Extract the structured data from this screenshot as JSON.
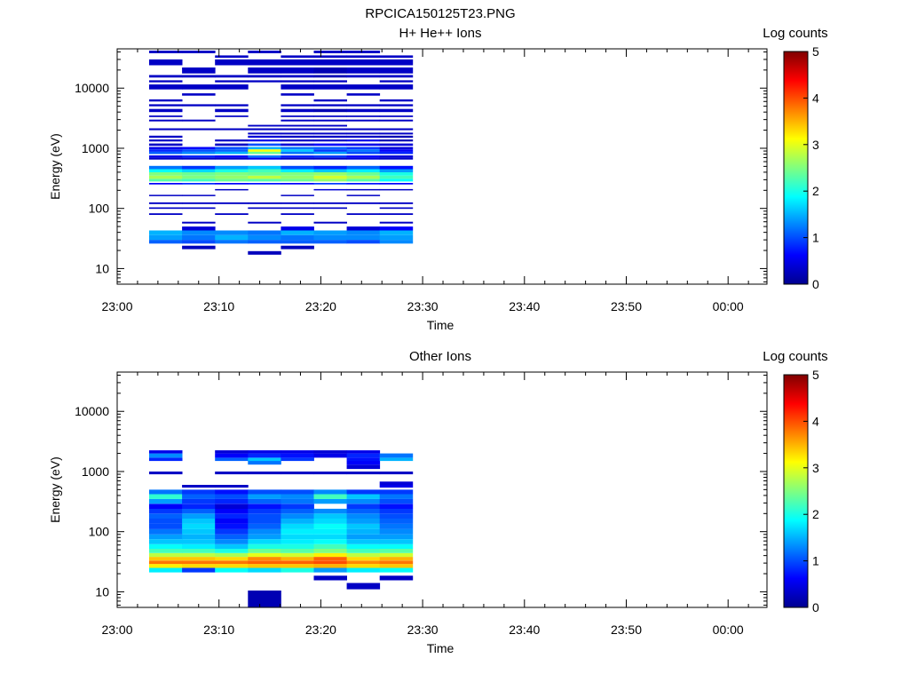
{
  "figure": {
    "title": "RPCICA150125T23.PNG"
  },
  "colorbar": {
    "label": "Log counts",
    "range": [
      0,
      5
    ],
    "ticks": [
      "0",
      "1",
      "2",
      "3",
      "4",
      "5"
    ]
  },
  "chart_data": [
    {
      "type": "heatmap",
      "title": "H+ He++ Ions",
      "xlabel": "Time",
      "ylabel": "Energy (eV)",
      "yscale": "log",
      "ylim": [
        5.5,
        45000
      ],
      "x_ticks": [
        "23:00",
        "23:10",
        "23:20",
        "23:30",
        "23:40",
        "23:50",
        "00:00"
      ],
      "y_ticks": [
        "10",
        "100",
        "1000",
        "10000"
      ],
      "time_columns": [
        "23:03",
        "23:06",
        "23:09",
        "23:12",
        "23:16",
        "23:19",
        "23:22",
        "23:25"
      ],
      "rows": [
        {
          "e_lo": 17,
          "e_hi": 19.5,
          "v": [
            null,
            null,
            null,
            0.25,
            null,
            null,
            null,
            null
          ]
        },
        {
          "e_lo": 21,
          "e_hi": 24,
          "v": [
            null,
            0.25,
            null,
            null,
            0.25,
            null,
            null,
            null
          ]
        },
        {
          "e_lo": 26,
          "e_hi": 30,
          "v": [
            1.1,
            1.0,
            1.2,
            1.1,
            1.1,
            1.1,
            1.0,
            1.3
          ]
        },
        {
          "e_lo": 30,
          "e_hi": 36,
          "v": [
            1.4,
            1.2,
            1.5,
            1.3,
            1.2,
            1.3,
            1.3,
            1.4
          ]
        },
        {
          "e_lo": 36,
          "e_hi": 43,
          "v": [
            1.5,
            1.3,
            1.3,
            1.2,
            1.5,
            1.4,
            1.3,
            1.5
          ]
        },
        {
          "e_lo": 43,
          "e_hi": 50,
          "v": [
            null,
            0.4,
            null,
            null,
            0.5,
            null,
            0.4,
            0.6
          ]
        },
        {
          "e_lo": 56,
          "e_hi": 60,
          "v": [
            null,
            0.3,
            null,
            0.3,
            null,
            0.3,
            null,
            0.3
          ]
        },
        {
          "e_lo": 78,
          "e_hi": 83,
          "v": [
            0.3,
            null,
            0.3,
            null,
            0.3,
            null,
            0.3,
            0.3
          ]
        },
        {
          "e_lo": 98,
          "e_hi": 104,
          "v": [
            0.3,
            0.3,
            null,
            0.3,
            0.3,
            0.3,
            null,
            0.3
          ]
        },
        {
          "e_lo": 118,
          "e_hi": 126,
          "v": [
            0.3,
            0.3,
            0.3,
            0.3,
            0.3,
            0.3,
            0.3,
            0.3
          ]
        },
        {
          "e_lo": 160,
          "e_hi": 168,
          "v": [
            0.3,
            0.3,
            null,
            null,
            0.3,
            null,
            0.3,
            null
          ]
        },
        {
          "e_lo": 200,
          "e_hi": 210,
          "v": [
            null,
            null,
            0.3,
            null,
            null,
            0.4,
            0.3,
            0.3
          ]
        },
        {
          "e_lo": 250,
          "e_hi": 265,
          "v": [
            0.6,
            0.8,
            0.6,
            0.7,
            0.6,
            0.9,
            0.7,
            0.6
          ]
        },
        {
          "e_lo": 280,
          "e_hi": 310,
          "v": [
            2.3,
            2.2,
            2.4,
            2.3,
            2.4,
            2.6,
            2.3,
            1.9
          ]
        },
        {
          "e_lo": 310,
          "e_hi": 350,
          "v": [
            2.7,
            2.5,
            2.6,
            2.8,
            2.6,
            2.9,
            2.7,
            2.2
          ]
        },
        {
          "e_lo": 350,
          "e_hi": 400,
          "v": [
            2.5,
            2.4,
            2.5,
            2.4,
            2.5,
            2.6,
            2.4,
            2.0
          ]
        },
        {
          "e_lo": 400,
          "e_hi": 450,
          "v": [
            1.9,
            1.7,
            2.0,
            2.2,
            1.8,
            1.6,
            1.8,
            1.4
          ]
        },
        {
          "e_lo": 450,
          "e_hi": 510,
          "v": [
            1.2,
            0.9,
            1.4,
            1.6,
            1.0,
            0.8,
            1.1,
            0.7
          ]
        },
        {
          "e_lo": 650,
          "e_hi": 700,
          "v": [
            0.3,
            0.3,
            0.3,
            0.5,
            0.3,
            0.3,
            0.4,
            0.3
          ]
        },
        {
          "e_lo": 700,
          "e_hi": 760,
          "v": [
            0.5,
            0.8,
            0.6,
            1.2,
            0.8,
            0.9,
            0.6,
            0.4
          ]
        },
        {
          "e_lo": 800,
          "e_hi": 880,
          "v": [
            1.1,
            1.3,
            1.5,
            2.4,
            1.2,
            1.4,
            1.0,
            0.8
          ]
        },
        {
          "e_lo": 880,
          "e_hi": 960,
          "v": [
            0.8,
            1.0,
            1.1,
            3.1,
            1.6,
            0.9,
            1.2,
            0.6
          ]
        },
        {
          "e_lo": 960,
          "e_hi": 1050,
          "v": [
            0.5,
            0.6,
            1.0,
            1.5,
            1.2,
            1.1,
            0.9,
            0.4
          ]
        },
        {
          "e_lo": 1100,
          "e_hi": 1200,
          "v": [
            0.3,
            null,
            0.3,
            1.0,
            0.4,
            0.6,
            0.5,
            0.4
          ]
        },
        {
          "e_lo": 1300,
          "e_hi": 1400,
          "v": [
            0.3,
            null,
            0.3,
            0.5,
            0.3,
            0.3,
            0.5,
            0.2
          ]
        },
        {
          "e_lo": 1500,
          "e_hi": 1620,
          "v": [
            0.3,
            null,
            null,
            0.4,
            0.3,
            0.3,
            0.3,
            0.2
          ]
        },
        {
          "e_lo": 1700,
          "e_hi": 1820,
          "v": [
            null,
            null,
            null,
            0.3,
            0.3,
            0.3,
            0.3,
            0.3
          ]
        },
        {
          "e_lo": 2000,
          "e_hi": 2150,
          "v": [
            0.3,
            0.3,
            0.3,
            0.3,
            0.3,
            0.3,
            0.3,
            0.3
          ]
        },
        {
          "e_lo": 2300,
          "e_hi": 2450,
          "v": [
            null,
            null,
            null,
            0.3,
            0.3,
            0.3,
            null,
            null
          ]
        },
        {
          "e_lo": 2800,
          "e_hi": 3000,
          "v": [
            0.3,
            0.3,
            null,
            null,
            0.3,
            0.3,
            0.3,
            0.3
          ]
        },
        {
          "e_lo": 3300,
          "e_hi": 3500,
          "v": [
            0.3,
            null,
            0.3,
            null,
            0.3,
            0.3,
            0.3,
            0.3
          ]
        },
        {
          "e_lo": 4000,
          "e_hi": 4500,
          "v": [
            0.3,
            null,
            0.3,
            null,
            0.3,
            0.2,
            0.3,
            0.3
          ]
        },
        {
          "e_lo": 5000,
          "e_hi": 5400,
          "v": [
            0.3,
            0.3,
            0.3,
            null,
            0.3,
            0.3,
            0.3,
            0.3
          ]
        },
        {
          "e_lo": 6000,
          "e_hi": 6500,
          "v": [
            0.3,
            null,
            null,
            null,
            null,
            0.3,
            null,
            0.3
          ]
        },
        {
          "e_lo": 7500,
          "e_hi": 8200,
          "v": [
            null,
            0.3,
            null,
            null,
            0.3,
            null,
            0.3,
            null
          ]
        },
        {
          "e_lo": 9500,
          "e_hi": 11500,
          "v": [
            0.3,
            0.3,
            0.3,
            null,
            0.3,
            0.3,
            0.3,
            0.3
          ]
        },
        {
          "e_lo": 12500,
          "e_hi": 13500,
          "v": [
            0.3,
            null,
            0.3,
            0.3,
            0.3,
            0.3,
            null,
            0.3
          ]
        },
        {
          "e_lo": 15000,
          "e_hi": 16500,
          "v": [
            0.3,
            0.3,
            0.3,
            0.3,
            0.3,
            0.2,
            0.3,
            0.3
          ]
        },
        {
          "e_lo": 17500,
          "e_hi": 22000,
          "v": [
            null,
            0.3,
            null,
            0.3,
            0.3,
            0.2,
            0.3,
            0.3
          ]
        },
        {
          "e_lo": 24000,
          "e_hi": 30000,
          "v": [
            0.3,
            null,
            0.3,
            0.3,
            0.3,
            0.3,
            0.3,
            0.3
          ]
        },
        {
          "e_lo": 32000,
          "e_hi": 35000,
          "v": [
            null,
            null,
            0.3,
            null,
            0.3,
            0.3,
            0.3,
            0.3
          ]
        },
        {
          "e_lo": 38000,
          "e_hi": 42000,
          "v": [
            0.3,
            0.3,
            null,
            0.3,
            null,
            0.3,
            0.3,
            null
          ]
        }
      ]
    },
    {
      "type": "heatmap",
      "title": "Other Ions",
      "xlabel": "Time",
      "ylabel": "Energy (eV)",
      "yscale": "log",
      "ylim": [
        5.5,
        45000
      ],
      "x_ticks": [
        "23:00",
        "23:10",
        "23:20",
        "23:30",
        "23:40",
        "23:50",
        "00:00"
      ],
      "y_ticks": [
        "10",
        "100",
        "1000",
        "10000"
      ],
      "time_columns": [
        "23:03",
        "23:06",
        "23:09",
        "23:12",
        "23:16",
        "23:19",
        "23:22",
        "23:25"
      ],
      "rows": [
        {
          "e_lo": 5.5,
          "e_hi": 10.5,
          "v": [
            null,
            null,
            null,
            0.2,
            null,
            null,
            null,
            null
          ]
        },
        {
          "e_lo": 11,
          "e_hi": 14,
          "v": [
            null,
            null,
            null,
            null,
            null,
            null,
            0.3,
            null
          ]
        },
        {
          "e_lo": 15.5,
          "e_hi": 18.5,
          "v": [
            null,
            null,
            null,
            null,
            null,
            0.3,
            null,
            0.3
          ]
        },
        {
          "e_lo": 21,
          "e_hi": 25,
          "v": [
            1.8,
            0.9,
            1.9,
            1.7,
            2.0,
            1.4,
            1.8,
            1.9
          ]
        },
        {
          "e_lo": 25,
          "e_hi": 29,
          "v": [
            3.2,
            3.3,
            3.3,
            3.4,
            3.4,
            3.5,
            3.3,
            3.4
          ]
        },
        {
          "e_lo": 29,
          "e_hi": 33,
          "v": [
            3.8,
            3.8,
            3.8,
            3.9,
            3.9,
            4.0,
            3.7,
            3.8
          ]
        },
        {
          "e_lo": 33,
          "e_hi": 38,
          "v": [
            3.4,
            3.4,
            3.3,
            3.7,
            3.5,
            3.9,
            3.3,
            3.5
          ]
        },
        {
          "e_lo": 38,
          "e_hi": 44,
          "v": [
            2.8,
            2.8,
            2.7,
            3.0,
            2.9,
            3.2,
            2.8,
            2.9
          ]
        },
        {
          "e_lo": 44,
          "e_hi": 52,
          "v": [
            2.2,
            2.2,
            2.0,
            2.4,
            2.3,
            2.5,
            2.2,
            2.3
          ]
        },
        {
          "e_lo": 52,
          "e_hi": 62,
          "v": [
            1.9,
            1.8,
            1.6,
            2.0,
            2.0,
            2.2,
            1.9,
            1.9
          ]
        },
        {
          "e_lo": 62,
          "e_hi": 75,
          "v": [
            1.6,
            1.6,
            1.3,
            1.7,
            1.8,
            1.9,
            1.6,
            1.6
          ]
        },
        {
          "e_lo": 75,
          "e_hi": 90,
          "v": [
            1.4,
            1.5,
            1.1,
            1.4,
            1.7,
            1.7,
            1.4,
            1.4
          ]
        },
        {
          "e_lo": 90,
          "e_hi": 110,
          "v": [
            1.2,
            1.6,
            0.9,
            1.3,
            1.8,
            1.8,
            1.5,
            1.3
          ]
        },
        {
          "e_lo": 110,
          "e_hi": 135,
          "v": [
            1.0,
            1.7,
            0.7,
            1.1,
            1.7,
            1.9,
            1.6,
            1.2
          ]
        },
        {
          "e_lo": 135,
          "e_hi": 165,
          "v": [
            1.0,
            1.6,
            0.6,
            1.0,
            1.5,
            1.7,
            1.4,
            1.1
          ]
        },
        {
          "e_lo": 165,
          "e_hi": 200,
          "v": [
            1.1,
            1.4,
            0.8,
            1.0,
            1.3,
            1.6,
            1.3,
            1.0
          ]
        },
        {
          "e_lo": 200,
          "e_hi": 240,
          "v": [
            0.9,
            1.1,
            0.6,
            0.9,
            1.1,
            1.3,
            1.1,
            0.9
          ]
        },
        {
          "e_lo": 240,
          "e_hi": 290,
          "v": [
            0.6,
            0.8,
            0.4,
            0.7,
            0.9,
            null,
            0.9,
            0.7
          ]
        },
        {
          "e_lo": 290,
          "e_hi": 350,
          "v": [
            1.4,
            0.9,
            0.8,
            1.1,
            1.2,
            1.4,
            1.3,
            1.0
          ]
        },
        {
          "e_lo": 350,
          "e_hi": 420,
          "v": [
            2.1,
            1.1,
            1.0,
            1.4,
            1.3,
            2.2,
            1.6,
            1.2
          ]
        },
        {
          "e_lo": 420,
          "e_hi": 500,
          "v": [
            1.2,
            0.9,
            0.7,
            1.0,
            1.0,
            1.3,
            0.9,
            0.9
          ]
        },
        {
          "e_lo": 540,
          "e_hi": 600,
          "v": [
            null,
            0.3,
            0.3,
            null,
            null,
            null,
            null,
            0.5
          ]
        },
        {
          "e_lo": 600,
          "e_hi": 680,
          "v": [
            null,
            null,
            null,
            null,
            null,
            null,
            null,
            0.4
          ]
        },
        {
          "e_lo": 900,
          "e_hi": 1000,
          "v": [
            0.3,
            null,
            0.3,
            0.3,
            0.3,
            0.3,
            0.3,
            0.3
          ]
        },
        {
          "e_lo": 1100,
          "e_hi": 1300,
          "v": [
            null,
            null,
            null,
            null,
            null,
            null,
            0.4,
            null
          ]
        },
        {
          "e_lo": 1300,
          "e_hi": 1500,
          "v": [
            null,
            null,
            null,
            1.2,
            null,
            null,
            0.6,
            null
          ]
        },
        {
          "e_lo": 1500,
          "e_hi": 1700,
          "v": [
            0.8,
            null,
            1.1,
            1.6,
            0.9,
            null,
            0.7,
            1.5
          ]
        },
        {
          "e_lo": 1700,
          "e_hi": 2000,
          "v": [
            1.3,
            null,
            0.6,
            0.8,
            0.7,
            0.5,
            0.8,
            1.2
          ]
        },
        {
          "e_lo": 2000,
          "e_hi": 2250,
          "v": [
            0.5,
            null,
            0.4,
            0.5,
            0.5,
            0.4,
            0.5,
            null
          ]
        }
      ]
    }
  ]
}
